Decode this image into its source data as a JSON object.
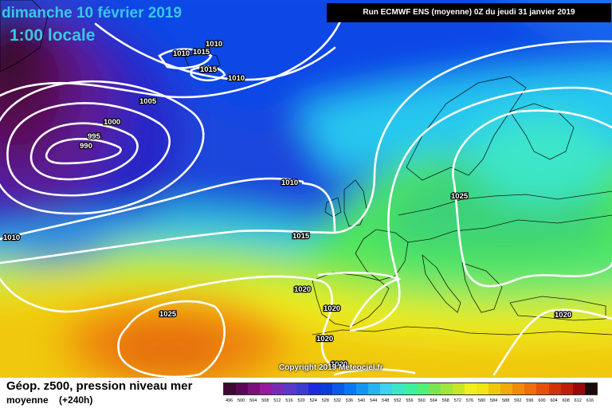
{
  "header": {
    "date_title": "dimanche 10 février 2019",
    "time_title": "1:00 locale",
    "run_info": "Run ECMWF ENS (moyenne) 0Z du jeudi 31 janvier 2019"
  },
  "map": {
    "copyright": "Copyright 2019 Meteociel.fr",
    "isobar_labels": [
      "1010",
      "1010",
      "1015",
      "1015",
      "1010",
      "1005",
      "1000",
      "995",
      "990",
      "1010",
      "1025",
      "1010",
      "1015",
      "1020",
      "1020",
      "1025",
      "1020",
      "1020",
      "1020"
    ]
  },
  "footer": {
    "title": "Géop. z500, pression niveau mer",
    "subtitle_left": "moyenne",
    "subtitle_right": "(+240h)"
  },
  "legend": {
    "values": [
      "496",
      "500",
      "504",
      "508",
      "512",
      "516",
      "520",
      "524",
      "528",
      "532",
      "536",
      "540",
      "544",
      "548",
      "552",
      "556",
      "560",
      "564",
      "568",
      "572",
      "576",
      "580",
      "584",
      "588",
      "592",
      "596",
      "600",
      "604",
      "608",
      "612",
      "616"
    ],
    "colors": [
      "#3c0a32",
      "#5a0a55",
      "#7a1078",
      "#961a9c",
      "#7a2bb5",
      "#5a3ac8",
      "#3c3cd2",
      "#1e28dc",
      "#0a3cdc",
      "#0a5ae6",
      "#0a78f0",
      "#1496f0",
      "#28b4f0",
      "#3cd2f0",
      "#3ce6c8",
      "#3cf0a0",
      "#50f07a",
      "#78e650",
      "#a0e63c",
      "#c8e628",
      "#f0f01e",
      "#f0e614",
      "#f0c80a",
      "#f0aa0a",
      "#f08c0a",
      "#f06e0a",
      "#e6500a",
      "#d2320a",
      "#be1e0a",
      "#960a0a",
      "#1e0a0a"
    ]
  }
}
